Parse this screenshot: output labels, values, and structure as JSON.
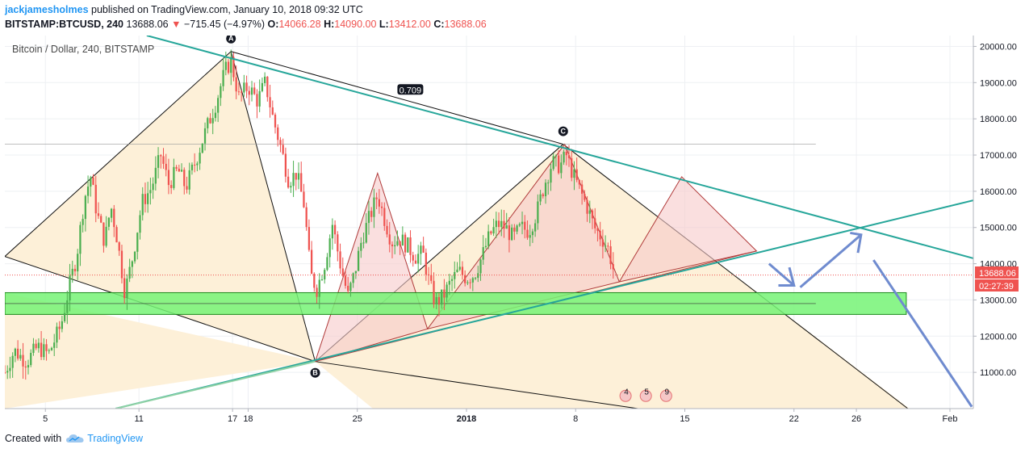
{
  "header": {
    "author": "jackjamesholmes",
    "published": "published on TradingView.com, January 10, 2018 09:32 UTC"
  },
  "quote": {
    "symbol": "BITSTAMP:BTCUSD, 240",
    "last": "13688.06",
    "arrow": "▼",
    "change": "−715.45 (−4.97%)",
    "o_label": "O:",
    "o": "14066.28",
    "h_label": "H:",
    "h": "14090.00",
    "l_label": "L:",
    "l": "13412.00",
    "c_label": "C:",
    "c": "13688.06"
  },
  "footer": {
    "created_with": "Created with",
    "brand": "TradingView"
  },
  "colors": {
    "up": "#4caf50",
    "down": "#ef5350",
    "trend": "#26a69a",
    "zone": "#76f376",
    "arrow": "#6f8bcf",
    "triangle_fill": "#fdf0d8",
    "harmonic_fill": "#f7c9c9"
  },
  "chart_data": {
    "type": "candlestick",
    "title": "Bitcoin / Dollar, 240, BITSTAMP",
    "y_axis": {
      "range": [
        10000,
        20300
      ],
      "ticks": [
        11000,
        12000,
        13000,
        14000,
        15000,
        16000,
        17000,
        18000,
        19000,
        20000
      ],
      "tick_labels": [
        "11000.00",
        "12000.00",
        "13000.00",
        "14000.00",
        "15000.00",
        "16000.00",
        "17000.00",
        "18000.00",
        "19000.00",
        "20000.00"
      ]
    },
    "x_axis": {
      "ticks": [
        {
          "day": 5,
          "label": "5"
        },
        {
          "day": 11,
          "label": "11"
        },
        {
          "day": 17,
          "label": "17"
        },
        {
          "day": 18,
          "label": "18"
        },
        {
          "day": 25,
          "label": "25"
        },
        {
          "day": 32,
          "label": "2018",
          "bold": true
        },
        {
          "day": 39,
          "label": "8"
        },
        {
          "day": 46,
          "label": "15"
        },
        {
          "day": 53,
          "label": "22"
        },
        {
          "day": 57,
          "label": "26"
        },
        {
          "day": 63,
          "label": "Feb"
        }
      ],
      "range": [
        2.4,
        64.5
      ]
    },
    "last_price": {
      "value": 13688.06,
      "label": "13688.06",
      "countdown": "02:27:39"
    },
    "fib_label": "0.709",
    "pattern_points": [
      {
        "label": "A",
        "day": 16.9,
        "price": 19860
      },
      {
        "label": "B",
        "day": 22.3,
        "price": 11300
      },
      {
        "label": "C",
        "day": 38.2,
        "price": 17300
      }
    ],
    "support_zone": [
      12600,
      13200
    ],
    "event_icons": [
      "4",
      "5",
      "9"
    ],
    "price_path": [
      [
        2.4,
        11000
      ],
      [
        3.0,
        11600
      ],
      [
        3.8,
        11300
      ],
      [
        4.5,
        11700
      ],
      [
        5.2,
        11500
      ],
      [
        6.0,
        12300
      ],
      [
        6.6,
        13500
      ],
      [
        7.0,
        14200
      ],
      [
        7.5,
        15800
      ],
      [
        7.9,
        16400
      ],
      [
        8.3,
        15400
      ],
      [
        8.8,
        14600
      ],
      [
        9.2,
        15600
      ],
      [
        9.6,
        14700
      ],
      [
        10.1,
        13200
      ],
      [
        10.6,
        14200
      ],
      [
        11.2,
        15700
      ],
      [
        11.8,
        16100
      ],
      [
        12.4,
        17000
      ],
      [
        12.9,
        16200
      ],
      [
        13.5,
        16600
      ],
      [
        14.0,
        16100
      ],
      [
        14.6,
        16800
      ],
      [
        15.3,
        17700
      ],
      [
        15.9,
        18400
      ],
      [
        16.5,
        19300
      ],
      [
        16.9,
        19600
      ],
      [
        17.4,
        18600
      ],
      [
        18.0,
        18900
      ],
      [
        18.6,
        18500
      ],
      [
        19.1,
        19000
      ],
      [
        19.6,
        18000
      ],
      [
        20.1,
        17200
      ],
      [
        20.6,
        16300
      ],
      [
        21.1,
        16500
      ],
      [
        21.6,
        15600
      ],
      [
        22.0,
        13700
      ],
      [
        22.4,
        13300
      ],
      [
        22.9,
        14000
      ],
      [
        23.4,
        15100
      ],
      [
        23.9,
        14000
      ],
      [
        24.4,
        13100
      ],
      [
        24.8,
        13700
      ],
      [
        25.3,
        14700
      ],
      [
        25.8,
        15300
      ],
      [
        26.3,
        15900
      ],
      [
        26.7,
        15300
      ],
      [
        27.2,
        14600
      ],
      [
        27.7,
        14700
      ],
      [
        28.2,
        14500
      ],
      [
        28.7,
        14200
      ],
      [
        29.2,
        14300
      ],
      [
        29.6,
        13500
      ],
      [
        30.0,
        12900
      ],
      [
        30.5,
        13100
      ],
      [
        31.0,
        13500
      ],
      [
        31.5,
        13800
      ],
      [
        32.0,
        13600
      ],
      [
        32.5,
        13700
      ],
      [
        33.0,
        14200
      ],
      [
        33.5,
        14800
      ],
      [
        34.0,
        15100
      ],
      [
        34.5,
        15000
      ],
      [
        35.0,
        14700
      ],
      [
        35.5,
        15000
      ],
      [
        36.0,
        14900
      ],
      [
        36.5,
        15400
      ],
      [
        37.0,
        16200
      ],
      [
        37.5,
        16800
      ],
      [
        38.0,
        16700
      ],
      [
        38.4,
        17000
      ],
      [
        38.8,
        16500
      ],
      [
        39.3,
        16000
      ],
      [
        39.8,
        15500
      ],
      [
        40.2,
        15000
      ],
      [
        40.7,
        14700
      ],
      [
        41.1,
        14400
      ],
      [
        41.5,
        13700
      ]
    ]
  }
}
